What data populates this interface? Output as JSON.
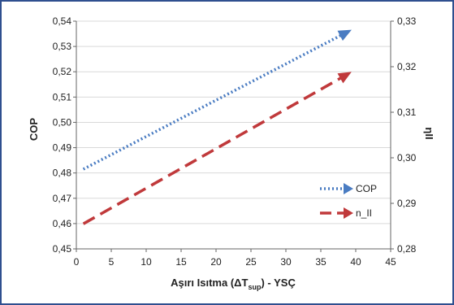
{
  "chart_data": {
    "type": "line",
    "x_axis": {
      "label_main": "Aşırı Isıtma (ΔT",
      "label_sub": "sup",
      "label_tail": ") - YSÇ",
      "range": [
        0,
        45
      ],
      "ticks": [
        "0",
        "5",
        "10",
        "15",
        "20",
        "25",
        "30",
        "35",
        "40",
        "45"
      ]
    },
    "y_left": {
      "label": "COP",
      "range": [
        0.45,
        0.54
      ],
      "ticks": [
        "0,45",
        "0,46",
        "0,47",
        "0,48",
        "0,49",
        "0,50",
        "0,51",
        "0,52",
        "0,53",
        "0,54"
      ]
    },
    "y_right": {
      "label": "ηII",
      "range": [
        0.28,
        0.33
      ],
      "ticks": [
        "0,28",
        "0,29",
        "0,30",
        "0,31",
        "0,32",
        "0,33"
      ]
    },
    "series": [
      {
        "name": "COP",
        "axis": "left",
        "style": "dotted",
        "color": "#4a7cc2",
        "x": [
          1,
          39
        ],
        "y": [
          0.4815,
          0.536
        ]
      },
      {
        "name": "n_II",
        "axis": "right",
        "style": "dashed",
        "color": "#c0393b",
        "x": [
          1,
          39
        ],
        "y": [
          0.2855,
          0.3185
        ]
      }
    ],
    "grid": true,
    "legend_position": "bottom-right"
  }
}
